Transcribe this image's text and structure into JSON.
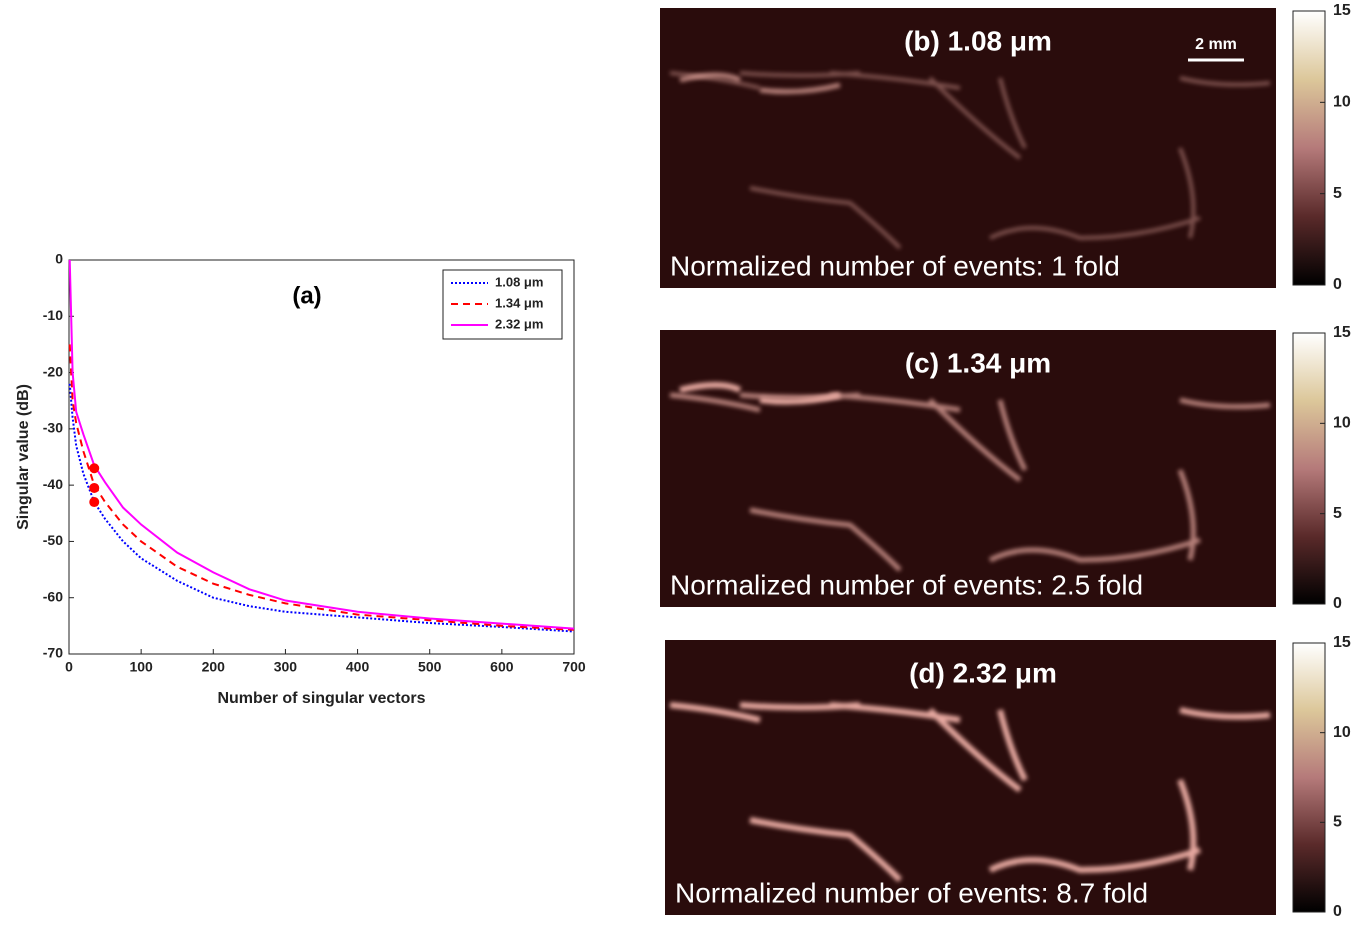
{
  "chart_data": [
    {
      "type": "line",
      "title": "(a)",
      "xlabel": "Number of singular vectors",
      "ylabel": "Singular value (dB)",
      "x": [
        1,
        5,
        10,
        20,
        35,
        50,
        75,
        100,
        150,
        200,
        250,
        300,
        400,
        500,
        600,
        700
      ],
      "series": [
        {
          "name": "1.08 μm",
          "color": "#0000ff",
          "linestyle": "dotted",
          "values": [
            -22,
            -28,
            -33,
            -38,
            -43,
            -46,
            -50,
            -53,
            -57,
            -60,
            -61.5,
            -62.5,
            -63.5,
            -64.5,
            -65.2,
            -66
          ]
        },
        {
          "name": "1.34 μm",
          "color": "#ff0000",
          "linestyle": "dashed",
          "values": [
            -15,
            -25,
            -29,
            -34,
            -40,
            -43,
            -47,
            -50,
            -54.5,
            -57.5,
            -59.5,
            -61,
            -63,
            -64,
            -65,
            -65.7
          ]
        },
        {
          "name": "2.32 μm",
          "color": "#ff00ff",
          "linestyle": "solid",
          "values": [
            0,
            -20,
            -27,
            -31,
            -36.5,
            -39.5,
            -44,
            -47,
            -52,
            -55.5,
            -58.5,
            -60.5,
            -62.5,
            -63.7,
            -64.6,
            -65.5
          ]
        }
      ],
      "markers": {
        "color": "#ff0000",
        "x": [
          35,
          35,
          35
        ],
        "y": [
          -37,
          -40.5,
          -43
        ]
      },
      "xlim": [
        0,
        700
      ],
      "xticks": [
        0,
        100,
        200,
        300,
        400,
        500,
        600,
        700
      ],
      "ylim": [
        -70,
        0
      ],
      "yticks": [
        0,
        -10,
        -20,
        -30,
        -40,
        -50,
        -60,
        -70
      ],
      "legend": "upper right"
    },
    {
      "type": "image",
      "title": "(b) 1.08 μm",
      "annotation": "Normalized number of events: 1 fold",
      "scale_bar": "2 mm",
      "clim": [
        0,
        15
      ],
      "colorbar_ticks": [
        0,
        5,
        10,
        15
      ]
    },
    {
      "type": "image",
      "title": "(c) 1.34 μm",
      "annotation": "Normalized number of events: 2.5 fold",
      "clim": [
        0,
        15
      ],
      "colorbar_ticks": [
        0,
        5,
        10,
        15
      ]
    },
    {
      "type": "image",
      "title": "(d) 2.32 μm",
      "annotation": "Normalized number of events: 8.7 fold",
      "clim": [
        0,
        15
      ],
      "colorbar_ticks": [
        0,
        5,
        10,
        15
      ]
    }
  ]
}
